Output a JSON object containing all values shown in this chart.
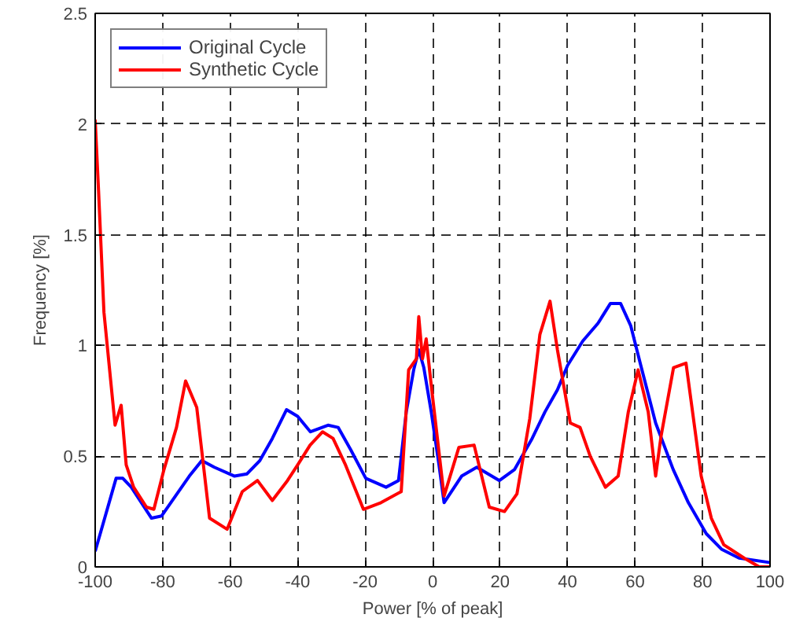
{
  "chart_data": {
    "type": "line",
    "xlabel": "Power [% of peak]",
    "ylabel": "Frequency [%]",
    "xlim": [
      -100,
      100
    ],
    "ylim": [
      0,
      2.5
    ],
    "xticks": [
      -100,
      -80,
      -60,
      -40,
      -20,
      0,
      20,
      40,
      60,
      80,
      100
    ],
    "yticks": [
      0,
      0.5,
      1,
      1.5,
      2,
      2.5
    ],
    "grid": true,
    "legend": "top left",
    "line_style": "solid",
    "marker": "none",
    "series": [
      {
        "name": "Original Cycle",
        "color": "#0000ff",
        "x": [
          -100,
          -93.8,
          -91.8,
          -89.3,
          -83.3,
          -80.3,
          -72.1,
          -68.4,
          -64.7,
          -58.7,
          -55,
          -51.2,
          -47.5,
          -43.3,
          -40,
          -36.2,
          -31,
          -28,
          -24.3,
          -19.8,
          -13.8,
          -10.1,
          -7.8,
          -5.6,
          -4.1,
          -2.6,
          -0.4,
          1.9,
          3.4,
          8.6,
          13.1,
          19.8,
          24.3,
          29.5,
          33.3,
          37,
          40,
          44.5,
          49,
          52.7,
          55.7,
          58.7,
          61.7,
          66.1,
          71.3,
          75.8,
          81.1,
          85.6,
          90.8,
          99.8
        ],
        "values": [
          0.07,
          0.4,
          0.4,
          0.36,
          0.22,
          0.23,
          0.41,
          0.48,
          0.45,
          0.41,
          0.42,
          0.48,
          0.58,
          0.71,
          0.68,
          0.61,
          0.64,
          0.63,
          0.53,
          0.4,
          0.36,
          0.39,
          0.7,
          0.89,
          0.98,
          0.9,
          0.7,
          0.46,
          0.29,
          0.41,
          0.45,
          0.39,
          0.44,
          0.58,
          0.7,
          0.8,
          0.91,
          1.02,
          1.1,
          1.19,
          1.19,
          1.09,
          0.91,
          0.65,
          0.44,
          0.29,
          0.15,
          0.08,
          0.04,
          0.02
        ]
      },
      {
        "name": "Synthetic Cycle",
        "color": "#ff0000",
        "x": [
          -100,
          -99,
          -97.4,
          -94.1,
          -92.3,
          -90.8,
          -88.6,
          -84.8,
          -82.6,
          -79.6,
          -75.9,
          -73.2,
          -69.9,
          -66.1,
          -60.9,
          -56.4,
          -51.9,
          -47.5,
          -43,
          -40,
          -36.3,
          -32.6,
          -29.5,
          -25.8,
          -20.5,
          -15.3,
          -9.3,
          -7.1,
          -4.8,
          -4.1,
          -3,
          -1.9,
          -0.4,
          3.4,
          7.8,
          12.3,
          16.8,
          21.3,
          25,
          28.8,
          31.8,
          34.8,
          37,
          40.8,
          43.7,
          46.7,
          51.2,
          55,
          58,
          60.9,
          63.9,
          66.1,
          67.7,
          71.4,
          75.1,
          79.6,
          82.6,
          86.3,
          92.3,
          96.8,
          99.8
        ],
        "values": [
          2.02,
          1.7,
          1.15,
          0.64,
          0.73,
          0.46,
          0.36,
          0.27,
          0.26,
          0.44,
          0.63,
          0.84,
          0.72,
          0.22,
          0.17,
          0.34,
          0.39,
          0.3,
          0.39,
          0.46,
          0.55,
          0.61,
          0.58,
          0.46,
          0.26,
          0.29,
          0.34,
          0.89,
          0.94,
          1.13,
          0.94,
          1.03,
          0.82,
          0.32,
          0.54,
          0.55,
          0.27,
          0.25,
          0.33,
          0.67,
          1.05,
          1.2,
          0.98,
          0.65,
          0.63,
          0.5,
          0.36,
          0.41,
          0.7,
          0.89,
          0.7,
          0.41,
          0.59,
          0.9,
          0.92,
          0.41,
          0.22,
          0.1,
          0.04,
          0.0,
          0.0
        ]
      }
    ]
  }
}
